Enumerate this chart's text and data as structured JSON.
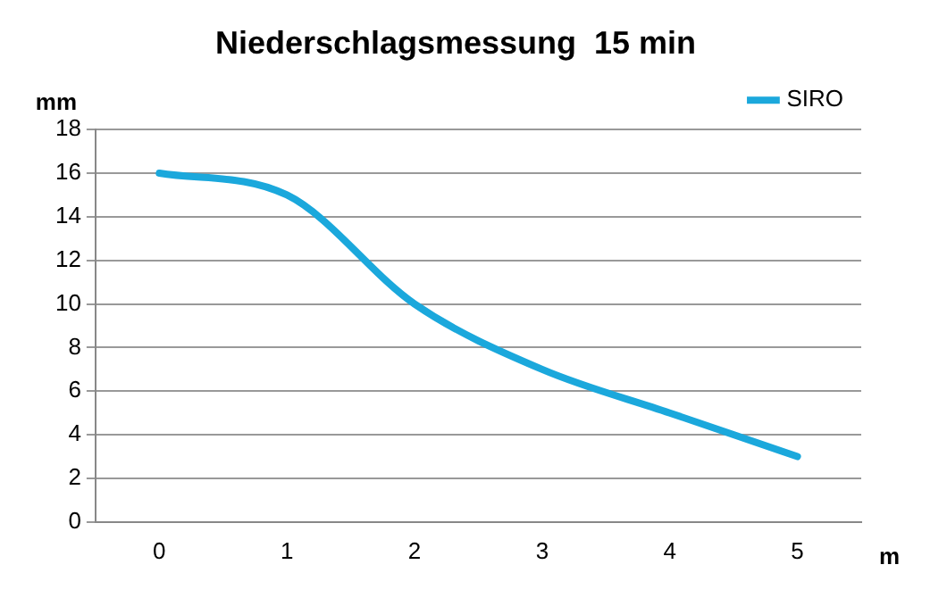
{
  "chart_data": {
    "type": "line",
    "title": "Niederschlagsmessung  15 min",
    "xlabel": "m",
    "ylabel": "mm",
    "categories": [
      "0",
      "1",
      "2",
      "3",
      "4",
      "5"
    ],
    "series": [
      {
        "name": "SIRO",
        "color": "#1ba8dc",
        "values": [
          16,
          15,
          10,
          7,
          5,
          3
        ]
      }
    ],
    "ylim": [
      0,
      18
    ],
    "yticks": [
      0,
      2,
      4,
      6,
      8,
      10,
      12,
      14,
      16,
      18
    ],
    "grid": "y",
    "legend": "top right",
    "marker": "none",
    "line_style": "solid"
  }
}
